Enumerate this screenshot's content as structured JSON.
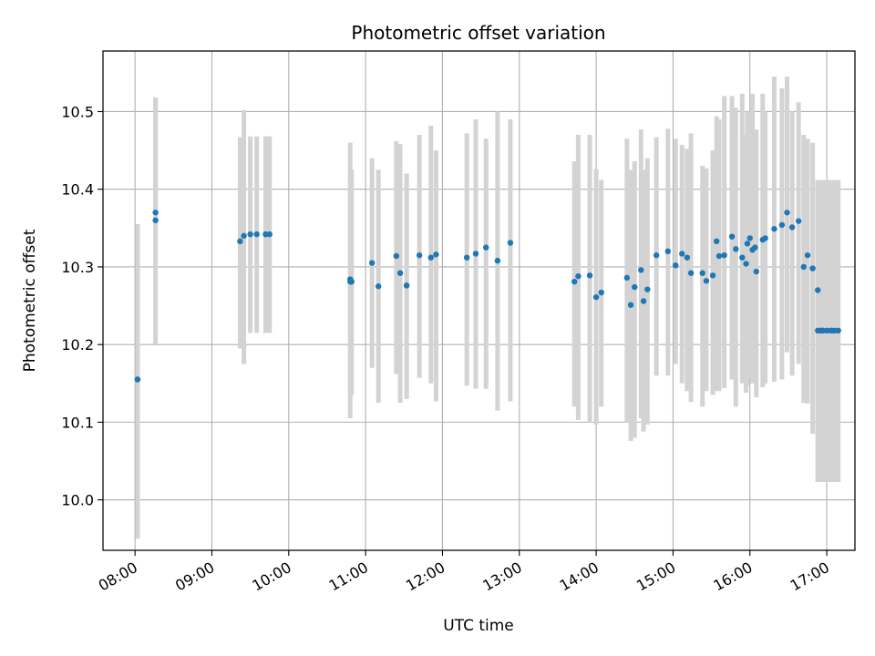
{
  "chart_data": {
    "type": "scatter",
    "title": "Photometric offset variation",
    "xlabel": "UTC time",
    "ylabel": "Photometric offset",
    "xlim": [
      "07:35",
      "17:22"
    ],
    "ylim": [
      9.935,
      10.578
    ],
    "grid": true,
    "x_ticks": [
      "08:00",
      "09:00",
      "10:00",
      "11:00",
      "12:00",
      "13:00",
      "14:00",
      "15:00",
      "16:00",
      "17:00"
    ],
    "y_ticks": [
      10.0,
      10.1,
      10.2,
      10.3,
      10.4,
      10.5
    ],
    "y_tick_labels": [
      "10.0",
      "10.1",
      "10.2",
      "10.3",
      "10.4",
      "10.5"
    ],
    "colors": {
      "points": "#1f77b4",
      "error_bars": "#d3d3d3",
      "grid": "#b0b0b0"
    },
    "series": [
      {
        "x": [
          "08:02",
          "08:02",
          "08:16",
          "08:16",
          "09:22",
          "09:25",
          "09:30",
          "09:35",
          "09:42",
          "09:42",
          "09:45",
          "10:48",
          "10:48",
          "10:49",
          "10:49",
          "11:05",
          "11:10",
          "11:24",
          "11:27",
          "11:32",
          "11:32",
          "11:42",
          "11:51",
          "11:55",
          "12:19",
          "12:26",
          "12:34",
          "12:43",
          "12:53",
          "13:43",
          "13:46",
          "13:55",
          "14:00",
          "14:04",
          "14:24",
          "14:27",
          "14:30",
          "14:35",
          "14:37",
          "14:40",
          "14:47",
          "14:56",
          "15:02",
          "15:07",
          "15:11",
          "15:14",
          "15:23",
          "15:26",
          "15:31",
          "15:34",
          "15:36",
          "15:40",
          "15:46",
          "15:49",
          "15:54",
          "15:57",
          "15:58",
          "16:00",
          "16:02",
          "16:04",
          "16:05",
          "16:10",
          "16:12",
          "16:19",
          "16:25",
          "16:29",
          "16:33",
          "16:38",
          "16:42",
          "16:45",
          "16:49",
          "16:53",
          "16:53",
          "16:55",
          "16:56",
          "16:57",
          "17:00",
          "17:03",
          "17:04",
          "17:06",
          "17:09"
        ],
        "y": [
          10.155,
          10.155,
          10.36,
          10.37,
          10.333,
          10.34,
          10.342,
          10.342,
          10.342,
          10.342,
          10.342,
          10.284,
          10.281,
          10.281,
          10.281,
          10.305,
          10.275,
          10.314,
          10.292,
          10.276,
          10.276,
          10.315,
          10.312,
          10.316,
          10.312,
          10.317,
          10.325,
          10.308,
          10.331,
          10.281,
          10.288,
          10.289,
          10.261,
          10.267,
          10.286,
          10.251,
          10.274,
          10.296,
          10.256,
          10.271,
          10.315,
          10.32,
          10.302,
          10.317,
          10.312,
          10.292,
          10.292,
          10.282,
          10.289,
          10.333,
          10.314,
          10.315,
          10.339,
          10.323,
          10.312,
          10.304,
          10.33,
          10.337,
          10.322,
          10.325,
          10.294,
          10.335,
          10.337,
          10.349,
          10.354,
          10.37,
          10.351,
          10.359,
          10.3,
          10.315,
          10.298,
          10.27,
          10.218,
          10.218,
          10.218,
          10.218,
          10.218,
          10.218,
          10.218,
          10.218,
          10.218
        ],
        "yerr_low": [
          10.155,
          9.95,
          10.2,
          10.37,
          10.195,
          10.175,
          10.215,
          10.215,
          10.215,
          10.215,
          10.215,
          10.105,
          10.135,
          10.135,
          10.135,
          10.17,
          10.125,
          10.162,
          10.125,
          10.13,
          10.13,
          10.157,
          10.15,
          10.127,
          10.147,
          10.143,
          10.143,
          10.115,
          10.127,
          10.12,
          10.103,
          10.1,
          10.097,
          10.12,
          10.1,
          10.076,
          10.08,
          10.105,
          10.088,
          10.097,
          10.16,
          10.16,
          10.175,
          10.15,
          10.14,
          10.126,
          10.12,
          10.14,
          10.135,
          10.14,
          10.14,
          10.144,
          10.155,
          10.12,
          10.15,
          10.138,
          10.147,
          10.157,
          10.15,
          10.151,
          10.132,
          10.145,
          10.15,
          10.152,
          10.155,
          10.19,
          10.16,
          10.175,
          10.125,
          10.124,
          10.085,
          10.023,
          10.023,
          10.023,
          10.023,
          10.023,
          10.023,
          10.023,
          10.023,
          10.023,
          10.023
        ],
        "yerr_high": [
          10.355,
          10.355,
          10.518,
          10.518,
          10.467,
          10.502,
          10.468,
          10.468,
          10.468,
          10.468,
          10.468,
          10.46,
          10.425,
          10.425,
          10.425,
          10.44,
          10.425,
          10.462,
          10.458,
          10.42,
          10.42,
          10.47,
          10.482,
          10.45,
          10.472,
          10.49,
          10.465,
          10.5,
          10.49,
          10.436,
          10.47,
          10.47,
          10.426,
          10.412,
          10.465,
          10.425,
          10.436,
          10.477,
          10.425,
          10.44,
          10.467,
          10.478,
          10.465,
          10.457,
          10.452,
          10.472,
          10.43,
          10.427,
          10.45,
          10.494,
          10.49,
          10.52,
          10.52,
          10.505,
          10.523,
          10.47,
          10.5,
          10.5,
          10.523,
          10.46,
          10.477,
          10.523,
          10.5,
          10.545,
          10.53,
          10.545,
          10.5,
          10.512,
          10.47,
          10.465,
          10.46,
          10.412,
          10.412,
          10.412,
          10.412,
          10.412,
          10.412,
          10.412,
          10.412,
          10.412,
          10.412
        ]
      }
    ]
  }
}
